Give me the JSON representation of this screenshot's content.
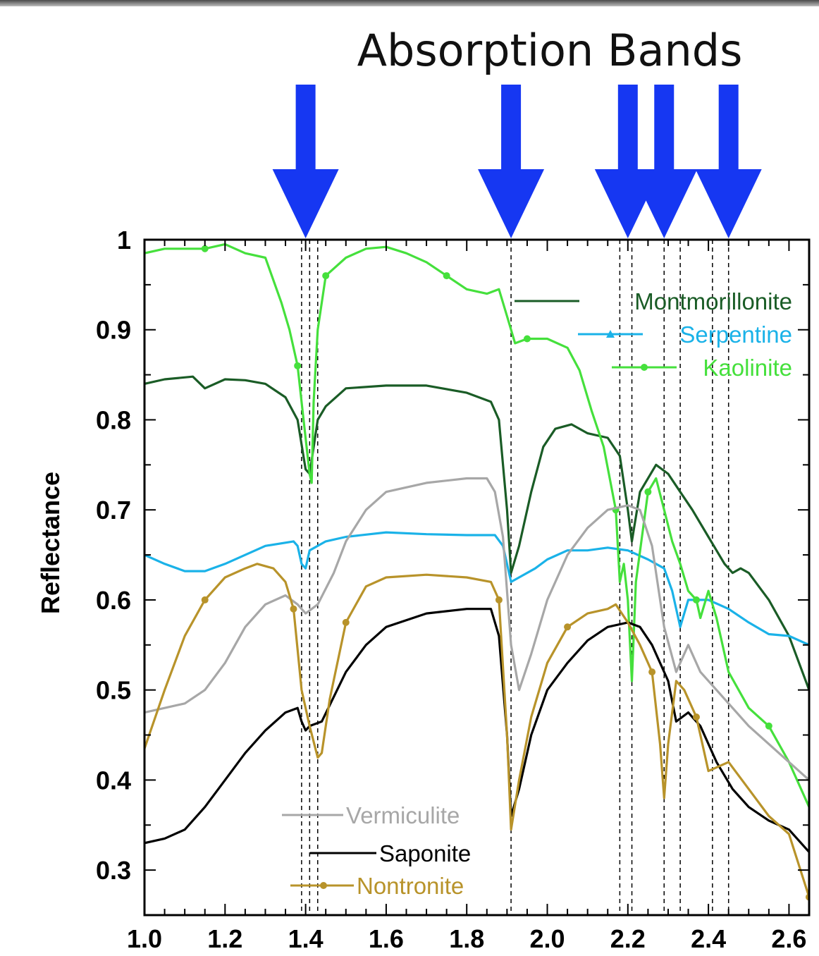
{
  "chart_data": {
    "type": "line",
    "title": "Absorption Bands",
    "xlabel": "",
    "ylabel": "Reflectance",
    "xlim": [
      1.0,
      2.65
    ],
    "ylim": [
      0.25,
      1.0
    ],
    "x_ticks": [
      "1.0",
      "1.2",
      "1.4",
      "1.6",
      "1.8",
      "2.0",
      "2.2",
      "2.4",
      "2.6"
    ],
    "y_ticks": [
      "0.3",
      "0.4",
      "0.5",
      "0.6",
      "0.7",
      "0.8",
      "0.9",
      "1"
    ],
    "absorption_band_arrows": [
      1.4,
      1.91,
      2.2,
      2.29,
      2.45
    ],
    "dashed_lines": [
      1.39,
      1.41,
      1.43,
      1.91,
      2.18,
      2.21,
      2.29,
      2.33,
      2.41,
      2.45
    ],
    "series": [
      {
        "name": "Montmorillonite",
        "color": "#1a5c26",
        "marker": "none",
        "points": [
          [
            1.0,
            0.84
          ],
          [
            1.05,
            0.845
          ],
          [
            1.12,
            0.848
          ],
          [
            1.15,
            0.835
          ],
          [
            1.2,
            0.845
          ],
          [
            1.25,
            0.844
          ],
          [
            1.3,
            0.84
          ],
          [
            1.35,
            0.825
          ],
          [
            1.38,
            0.8
          ],
          [
            1.4,
            0.745
          ],
          [
            1.41,
            0.74
          ],
          [
            1.43,
            0.8
          ],
          [
            1.45,
            0.815
          ],
          [
            1.5,
            0.835
          ],
          [
            1.6,
            0.838
          ],
          [
            1.7,
            0.838
          ],
          [
            1.8,
            0.83
          ],
          [
            1.86,
            0.82
          ],
          [
            1.88,
            0.8
          ],
          [
            1.9,
            0.7
          ],
          [
            1.91,
            0.63
          ],
          [
            1.93,
            0.66
          ],
          [
            1.96,
            0.72
          ],
          [
            1.99,
            0.77
          ],
          [
            2.02,
            0.79
          ],
          [
            2.06,
            0.795
          ],
          [
            2.1,
            0.785
          ],
          [
            2.15,
            0.78
          ],
          [
            2.18,
            0.76
          ],
          [
            2.2,
            0.7
          ],
          [
            2.21,
            0.665
          ],
          [
            2.23,
            0.72
          ],
          [
            2.27,
            0.75
          ],
          [
            2.3,
            0.74
          ],
          [
            2.33,
            0.72
          ],
          [
            2.36,
            0.7
          ],
          [
            2.4,
            0.67
          ],
          [
            2.44,
            0.64
          ],
          [
            2.46,
            0.63
          ],
          [
            2.48,
            0.635
          ],
          [
            2.5,
            0.63
          ],
          [
            2.55,
            0.6
          ],
          [
            2.6,
            0.56
          ],
          [
            2.65,
            0.5
          ]
        ]
      },
      {
        "name": "Serpentine",
        "color": "#1ab2e8",
        "marker": "triangle",
        "points": [
          [
            1.0,
            0.65
          ],
          [
            1.05,
            0.64
          ],
          [
            1.1,
            0.632
          ],
          [
            1.15,
            0.632
          ],
          [
            1.2,
            0.64
          ],
          [
            1.3,
            0.66
          ],
          [
            1.37,
            0.665
          ],
          [
            1.38,
            0.66
          ],
          [
            1.39,
            0.64
          ],
          [
            1.4,
            0.635
          ],
          [
            1.41,
            0.655
          ],
          [
            1.45,
            0.665
          ],
          [
            1.5,
            0.67
          ],
          [
            1.6,
            0.675
          ],
          [
            1.7,
            0.673
          ],
          [
            1.8,
            0.672
          ],
          [
            1.87,
            0.672
          ],
          [
            1.89,
            0.66
          ],
          [
            1.91,
            0.62
          ],
          [
            1.93,
            0.625
          ],
          [
            1.97,
            0.635
          ],
          [
            2.0,
            0.645
          ],
          [
            2.05,
            0.655
          ],
          [
            2.1,
            0.655
          ],
          [
            2.15,
            0.658
          ],
          [
            2.2,
            0.655
          ],
          [
            2.25,
            0.645
          ],
          [
            2.29,
            0.635
          ],
          [
            2.31,
            0.61
          ],
          [
            2.33,
            0.57
          ],
          [
            2.35,
            0.6
          ],
          [
            2.4,
            0.6
          ],
          [
            2.45,
            0.59
          ],
          [
            2.5,
            0.575
          ],
          [
            2.55,
            0.562
          ],
          [
            2.6,
            0.56
          ],
          [
            2.65,
            0.55
          ]
        ]
      },
      {
        "name": "Kaolinite",
        "color": "#45e03c",
        "marker": "circle",
        "points": [
          [
            1.0,
            0.985
          ],
          [
            1.05,
            0.99
          ],
          [
            1.1,
            0.99
          ],
          [
            1.15,
            0.99
          ],
          [
            1.2,
            0.995
          ],
          [
            1.25,
            0.985
          ],
          [
            1.3,
            0.98
          ],
          [
            1.34,
            0.93
          ],
          [
            1.36,
            0.9
          ],
          [
            1.38,
            0.86
          ],
          [
            1.395,
            0.8
          ],
          [
            1.41,
            0.74
          ],
          [
            1.415,
            0.73
          ],
          [
            1.42,
            0.82
          ],
          [
            1.43,
            0.9
          ],
          [
            1.45,
            0.96
          ],
          [
            1.5,
            0.98
          ],
          [
            1.55,
            0.99
          ],
          [
            1.6,
            0.992
          ],
          [
            1.65,
            0.985
          ],
          [
            1.7,
            0.975
          ],
          [
            1.75,
            0.96
          ],
          [
            1.8,
            0.945
          ],
          [
            1.85,
            0.94
          ],
          [
            1.88,
            0.945
          ],
          [
            1.9,
            0.915
          ],
          [
            1.92,
            0.885
          ],
          [
            1.95,
            0.89
          ],
          [
            2.0,
            0.89
          ],
          [
            2.05,
            0.88
          ],
          [
            2.08,
            0.855
          ],
          [
            2.11,
            0.81
          ],
          [
            2.14,
            0.77
          ],
          [
            2.17,
            0.7
          ],
          [
            2.18,
            0.62
          ],
          [
            2.19,
            0.64
          ],
          [
            2.2,
            0.6
          ],
          [
            2.21,
            0.51
          ],
          [
            2.22,
            0.62
          ],
          [
            2.25,
            0.72
          ],
          [
            2.27,
            0.735
          ],
          [
            2.29,
            0.7
          ],
          [
            2.31,
            0.665
          ],
          [
            2.33,
            0.64
          ],
          [
            2.35,
            0.61
          ],
          [
            2.37,
            0.6
          ],
          [
            2.38,
            0.58
          ],
          [
            2.4,
            0.61
          ],
          [
            2.42,
            0.58
          ],
          [
            2.45,
            0.52
          ],
          [
            2.5,
            0.48
          ],
          [
            2.55,
            0.46
          ],
          [
            2.6,
            0.42
          ],
          [
            2.65,
            0.37
          ]
        ]
      },
      {
        "name": "Vermiculite",
        "color": "#a7a7a7",
        "marker": "none",
        "points": [
          [
            1.0,
            0.475
          ],
          [
            1.05,
            0.48
          ],
          [
            1.1,
            0.485
          ],
          [
            1.15,
            0.5
          ],
          [
            1.2,
            0.53
          ],
          [
            1.25,
            0.57
          ],
          [
            1.3,
            0.595
          ],
          [
            1.35,
            0.605
          ],
          [
            1.38,
            0.595
          ],
          [
            1.4,
            0.585
          ],
          [
            1.43,
            0.595
          ],
          [
            1.47,
            0.63
          ],
          [
            1.5,
            0.665
          ],
          [
            1.55,
            0.7
          ],
          [
            1.6,
            0.72
          ],
          [
            1.7,
            0.73
          ],
          [
            1.8,
            0.735
          ],
          [
            1.85,
            0.735
          ],
          [
            1.87,
            0.72
          ],
          [
            1.89,
            0.67
          ],
          [
            1.91,
            0.55
          ],
          [
            1.93,
            0.5
          ],
          [
            1.96,
            0.54
          ],
          [
            2.0,
            0.6
          ],
          [
            2.05,
            0.65
          ],
          [
            2.1,
            0.68
          ],
          [
            2.15,
            0.7
          ],
          [
            2.2,
            0.705
          ],
          [
            2.23,
            0.7
          ],
          [
            2.26,
            0.66
          ],
          [
            2.29,
            0.57
          ],
          [
            2.32,
            0.52
          ],
          [
            2.35,
            0.55
          ],
          [
            2.38,
            0.52
          ],
          [
            2.42,
            0.5
          ],
          [
            2.46,
            0.48
          ],
          [
            2.5,
            0.46
          ],
          [
            2.55,
            0.44
          ],
          [
            2.6,
            0.42
          ],
          [
            2.65,
            0.4
          ]
        ]
      },
      {
        "name": "Saponite",
        "color": "#000000",
        "marker": "none",
        "points": [
          [
            1.0,
            0.33
          ],
          [
            1.05,
            0.335
          ],
          [
            1.1,
            0.345
          ],
          [
            1.15,
            0.37
          ],
          [
            1.2,
            0.4
          ],
          [
            1.25,
            0.43
          ],
          [
            1.3,
            0.455
          ],
          [
            1.35,
            0.475
          ],
          [
            1.38,
            0.48
          ],
          [
            1.39,
            0.465
          ],
          [
            1.4,
            0.455
          ],
          [
            1.41,
            0.46
          ],
          [
            1.44,
            0.465
          ],
          [
            1.5,
            0.52
          ],
          [
            1.55,
            0.55
          ],
          [
            1.6,
            0.57
          ],
          [
            1.7,
            0.585
          ],
          [
            1.8,
            0.59
          ],
          [
            1.86,
            0.59
          ],
          [
            1.88,
            0.56
          ],
          [
            1.9,
            0.45
          ],
          [
            1.91,
            0.36
          ],
          [
            1.93,
            0.39
          ],
          [
            1.96,
            0.45
          ],
          [
            2.0,
            0.5
          ],
          [
            2.05,
            0.53
          ],
          [
            2.1,
            0.555
          ],
          [
            2.15,
            0.57
          ],
          [
            2.2,
            0.575
          ],
          [
            2.23,
            0.57
          ],
          [
            2.26,
            0.55
          ],
          [
            2.3,
            0.51
          ],
          [
            2.32,
            0.465
          ],
          [
            2.35,
            0.475
          ],
          [
            2.38,
            0.46
          ],
          [
            2.42,
            0.42
          ],
          [
            2.46,
            0.39
          ],
          [
            2.5,
            0.37
          ],
          [
            2.55,
            0.355
          ],
          [
            2.6,
            0.345
          ],
          [
            2.65,
            0.32
          ]
        ]
      },
      {
        "name": "Nontronite",
        "color": "#b8932a",
        "marker": "circle",
        "points": [
          [
            1.0,
            0.435
          ],
          [
            1.05,
            0.5
          ],
          [
            1.1,
            0.56
          ],
          [
            1.15,
            0.6
          ],
          [
            1.2,
            0.625
          ],
          [
            1.25,
            0.635
          ],
          [
            1.28,
            0.64
          ],
          [
            1.32,
            0.635
          ],
          [
            1.35,
            0.62
          ],
          [
            1.37,
            0.59
          ],
          [
            1.39,
            0.5
          ],
          [
            1.41,
            0.46
          ],
          [
            1.43,
            0.425
          ],
          [
            1.44,
            0.43
          ],
          [
            1.46,
            0.49
          ],
          [
            1.5,
            0.575
          ],
          [
            1.55,
            0.615
          ],
          [
            1.6,
            0.625
          ],
          [
            1.7,
            0.628
          ],
          [
            1.8,
            0.625
          ],
          [
            1.86,
            0.62
          ],
          [
            1.88,
            0.6
          ],
          [
            1.9,
            0.45
          ],
          [
            1.91,
            0.345
          ],
          [
            1.93,
            0.4
          ],
          [
            1.96,
            0.47
          ],
          [
            2.0,
            0.53
          ],
          [
            2.05,
            0.57
          ],
          [
            2.1,
            0.585
          ],
          [
            2.15,
            0.59
          ],
          [
            2.17,
            0.595
          ],
          [
            2.2,
            0.575
          ],
          [
            2.23,
            0.55
          ],
          [
            2.26,
            0.52
          ],
          [
            2.28,
            0.44
          ],
          [
            2.29,
            0.38
          ],
          [
            2.3,
            0.44
          ],
          [
            2.32,
            0.51
          ],
          [
            2.34,
            0.5
          ],
          [
            2.37,
            0.47
          ],
          [
            2.4,
            0.41
          ],
          [
            2.45,
            0.42
          ],
          [
            2.5,
            0.39
          ],
          [
            2.55,
            0.36
          ],
          [
            2.6,
            0.34
          ],
          [
            2.65,
            0.27
          ]
        ]
      }
    ],
    "legend_top_right": [
      "Montmorillonite",
      "Serpentine",
      "Kaolinite"
    ],
    "legend_bottom_left": [
      "Vermiculite",
      "Saponite",
      "Nontronite"
    ]
  }
}
